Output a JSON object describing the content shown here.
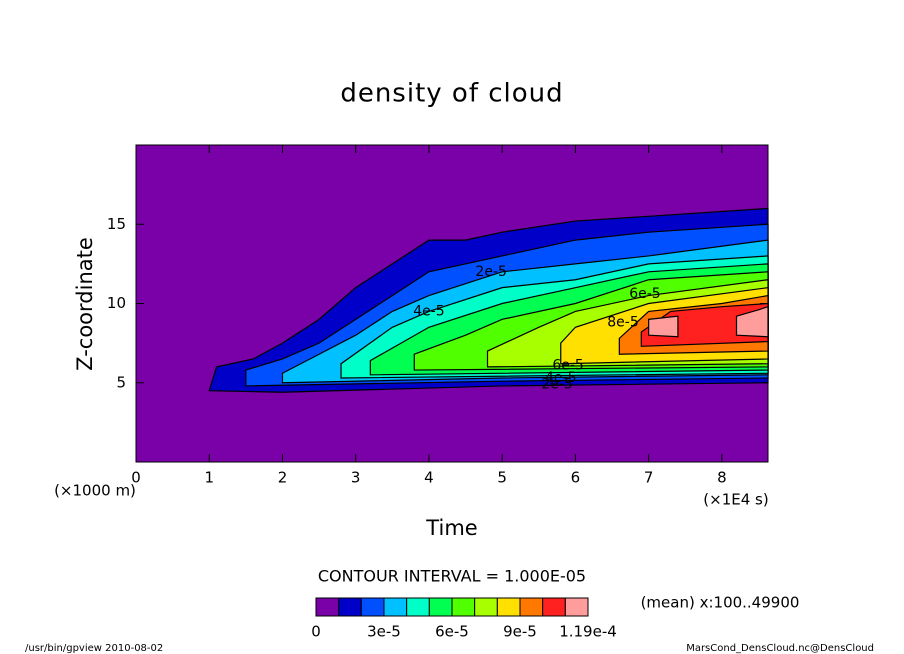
{
  "chart_data": {
    "type": "contourf",
    "title": "density of cloud",
    "xlabel": "Time",
    "ylabel": "Z-coordinate",
    "x_unit": "(×1E4 s)",
    "y_unit": "(×1000 m)",
    "xlim": [
      0,
      8.63
    ],
    "xticks": [
      0,
      1,
      2,
      3,
      4,
      5,
      6,
      7,
      8
    ],
    "ylim": [
      0,
      20
    ],
    "yticks": [
      5,
      10,
      15
    ],
    "levels": [
      0,
      1e-05,
      2e-05,
      3e-05,
      4e-05,
      5e-05,
      6e-05,
      7e-05,
      8e-05,
      9e-05,
      0.0001,
      0.00011,
      0.000119
    ],
    "colors": [
      "#7a00a8",
      "#0000c8",
      "#0050ff",
      "#00c0ff",
      "#00ffc8",
      "#00ff50",
      "#50ff00",
      "#a8ff00",
      "#ffe000",
      "#ff7800",
      "#ff2020",
      "#ff9c9c"
    ],
    "level_ticks": [
      0,
      {
        "value": 3e-05,
        "label": "3e-5"
      },
      {
        "value": 6e-05,
        "label": "6e-5"
      },
      {
        "value": 9e-05,
        "label": "9e-5"
      },
      {
        "value": 0.000119,
        "label": "1.19e-4"
      }
    ],
    "contour_interval_label": "CONTOUR INTERVAL = 1.000E-05",
    "contour_labels": [
      {
        "value": 2e-05,
        "label": "2e-5"
      },
      {
        "value": 4e-05,
        "label": "4e-5"
      },
      {
        "value": 6e-05,
        "label": "6e-5"
      },
      {
        "value": 8e-05,
        "label": "8e-5"
      }
    ],
    "mean_note": "(mean) x:100..49900"
  },
  "footer": {
    "left": "/usr/bin/gpview  2010-08-02",
    "right": "MarsCond_DensCloud.nc@DensCloud"
  }
}
